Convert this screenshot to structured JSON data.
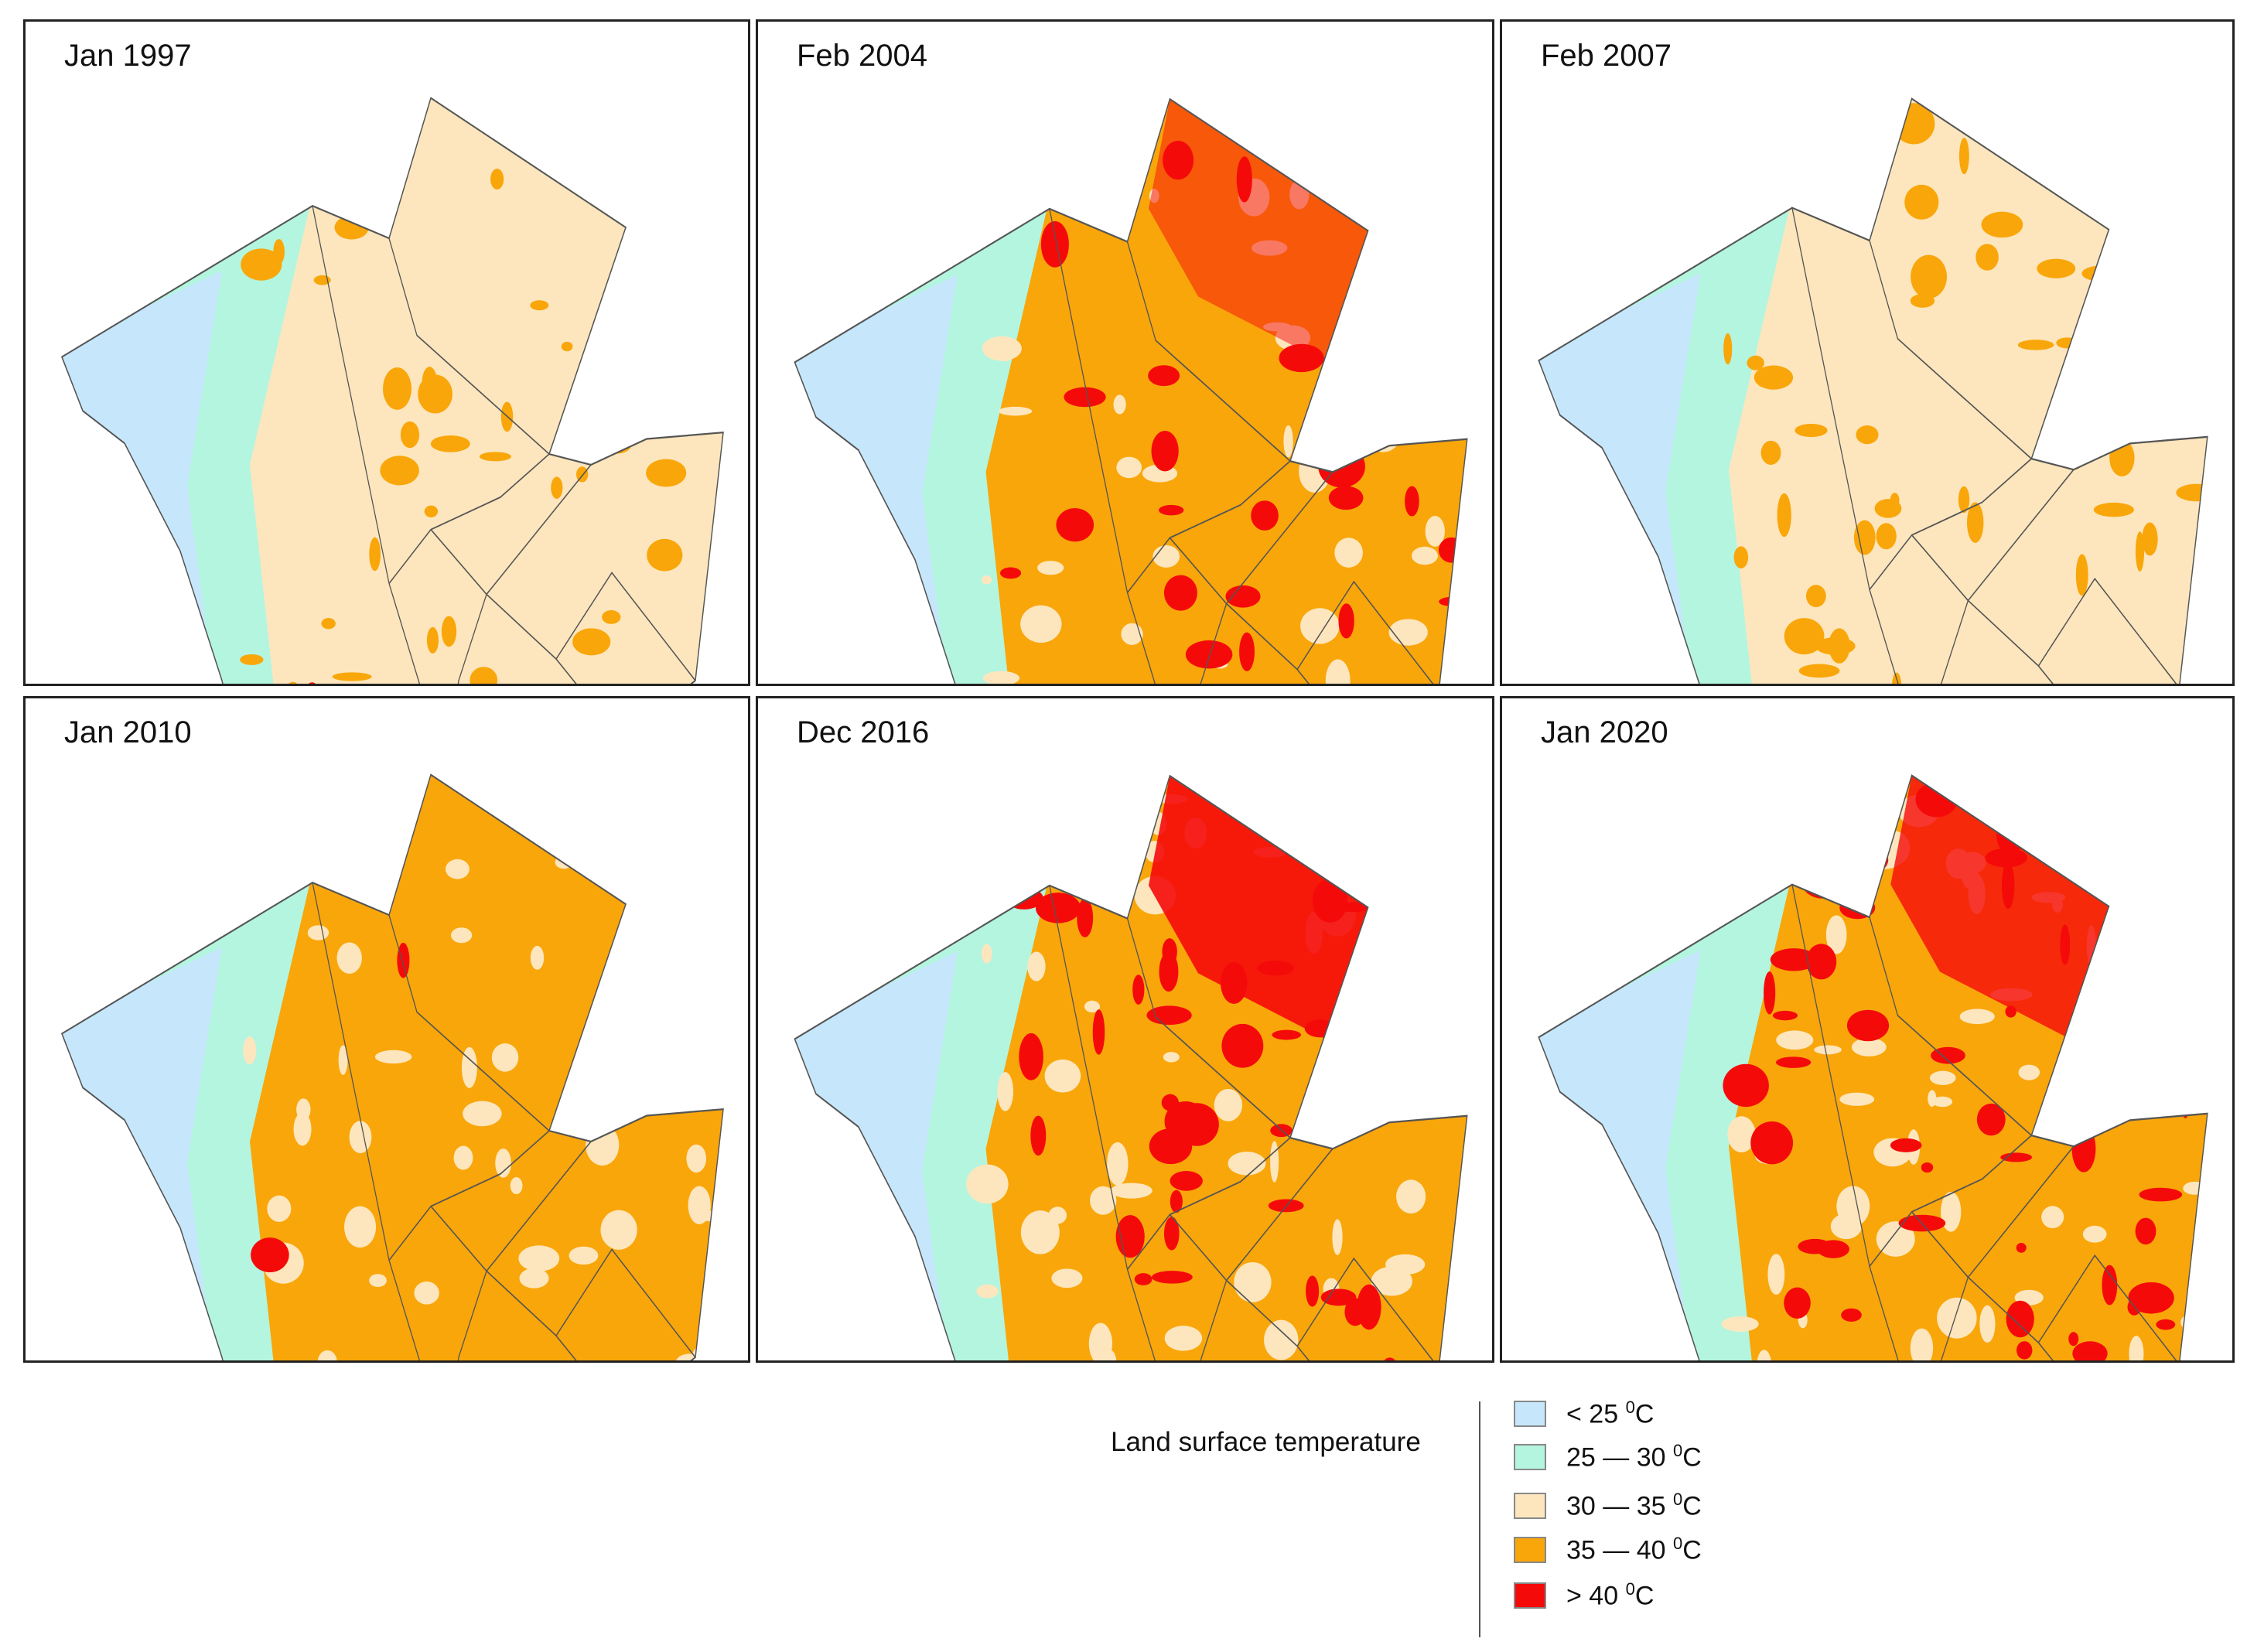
{
  "legend": {
    "title": "Land surface temperature",
    "items": [
      {
        "label": "< 25 ",
        "sup": "0",
        "unit": "C",
        "color": "#c6e7fb"
      },
      {
        "label": "25 — 30 ",
        "sup": "0",
        "unit": "C",
        "color": "#b4f5e0"
      },
      {
        "label": "30 — 35 ",
        "sup": "0",
        "unit": "C",
        "color": "#fde6bd"
      },
      {
        "label": "35 — 40 ",
        "sup": "0",
        "unit": "C",
        "color": "#f9a60a"
      },
      {
        "label": "> 40 ",
        "sup": "0",
        "unit": "C",
        "color": "#f50a0a"
      }
    ]
  },
  "panels": [
    {
      "title": "Jan 1997",
      "dominant": "#fde6bd",
      "cool": "#c6e7fb",
      "mid": "#f9a60a",
      "hot_level": 0.02
    },
    {
      "title": "Feb 2004",
      "dominant": "#f9a60a",
      "cool": "#b4f5e0",
      "mid": "#fde6bd",
      "hot_level": 0.25
    },
    {
      "title": "Feb 2007",
      "dominant": "#fde6bd",
      "cool": "#c6e7fb",
      "mid": "#f9a60a",
      "hot_level": 0.0
    },
    {
      "title": "Jan 2010",
      "dominant": "#f9a60a",
      "cool": "#b4f5e0",
      "mid": "#fde6bd",
      "hot_level": 0.05
    },
    {
      "title": "Dec 2016",
      "dominant": "#f9a60a",
      "cool": "#b4f5e0",
      "mid": "#fde6bd",
      "hot_level": 0.45
    },
    {
      "title": "Jan 2020",
      "dominant": "#f9a60a",
      "cool": "#c6e7fb",
      "mid": "#fde6bd",
      "hot_level": 0.4
    }
  ]
}
